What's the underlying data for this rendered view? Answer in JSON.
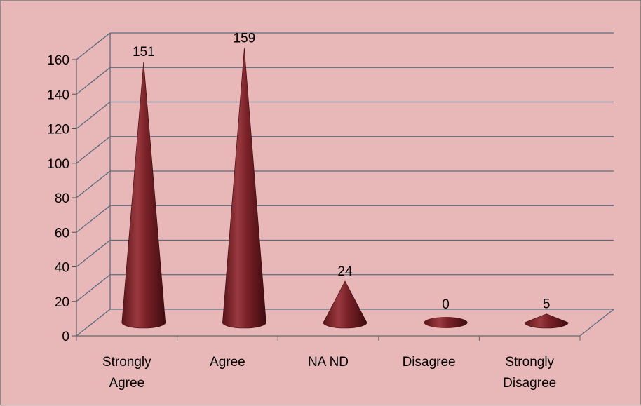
{
  "chart_data": {
    "type": "bar",
    "style": "3d-cone",
    "categories": [
      [
        "Strongly",
        "Agree"
      ],
      [
        "Agree"
      ],
      [
        "NA ND"
      ],
      [
        "Disagree"
      ],
      [
        "Strongly",
        "Disagree"
      ]
    ],
    "values": [
      151,
      159,
      24,
      0,
      5
    ],
    "data_labels": [
      "151",
      "159",
      "24",
      "0",
      "5"
    ],
    "y_ticks": [
      "0",
      "20",
      "40",
      "60",
      "80",
      "100",
      "120",
      "140",
      "160"
    ],
    "ylim": [
      0,
      160
    ],
    "title": "",
    "xlabel": "",
    "ylabel": "",
    "grid": true,
    "legend": "none",
    "colors": {
      "background": "#e8b8b8",
      "cone_dark": "#5a1418",
      "cone_mid": "#8a2a30",
      "cone_light": "#c06a70",
      "grid": "#5a6b80"
    }
  }
}
